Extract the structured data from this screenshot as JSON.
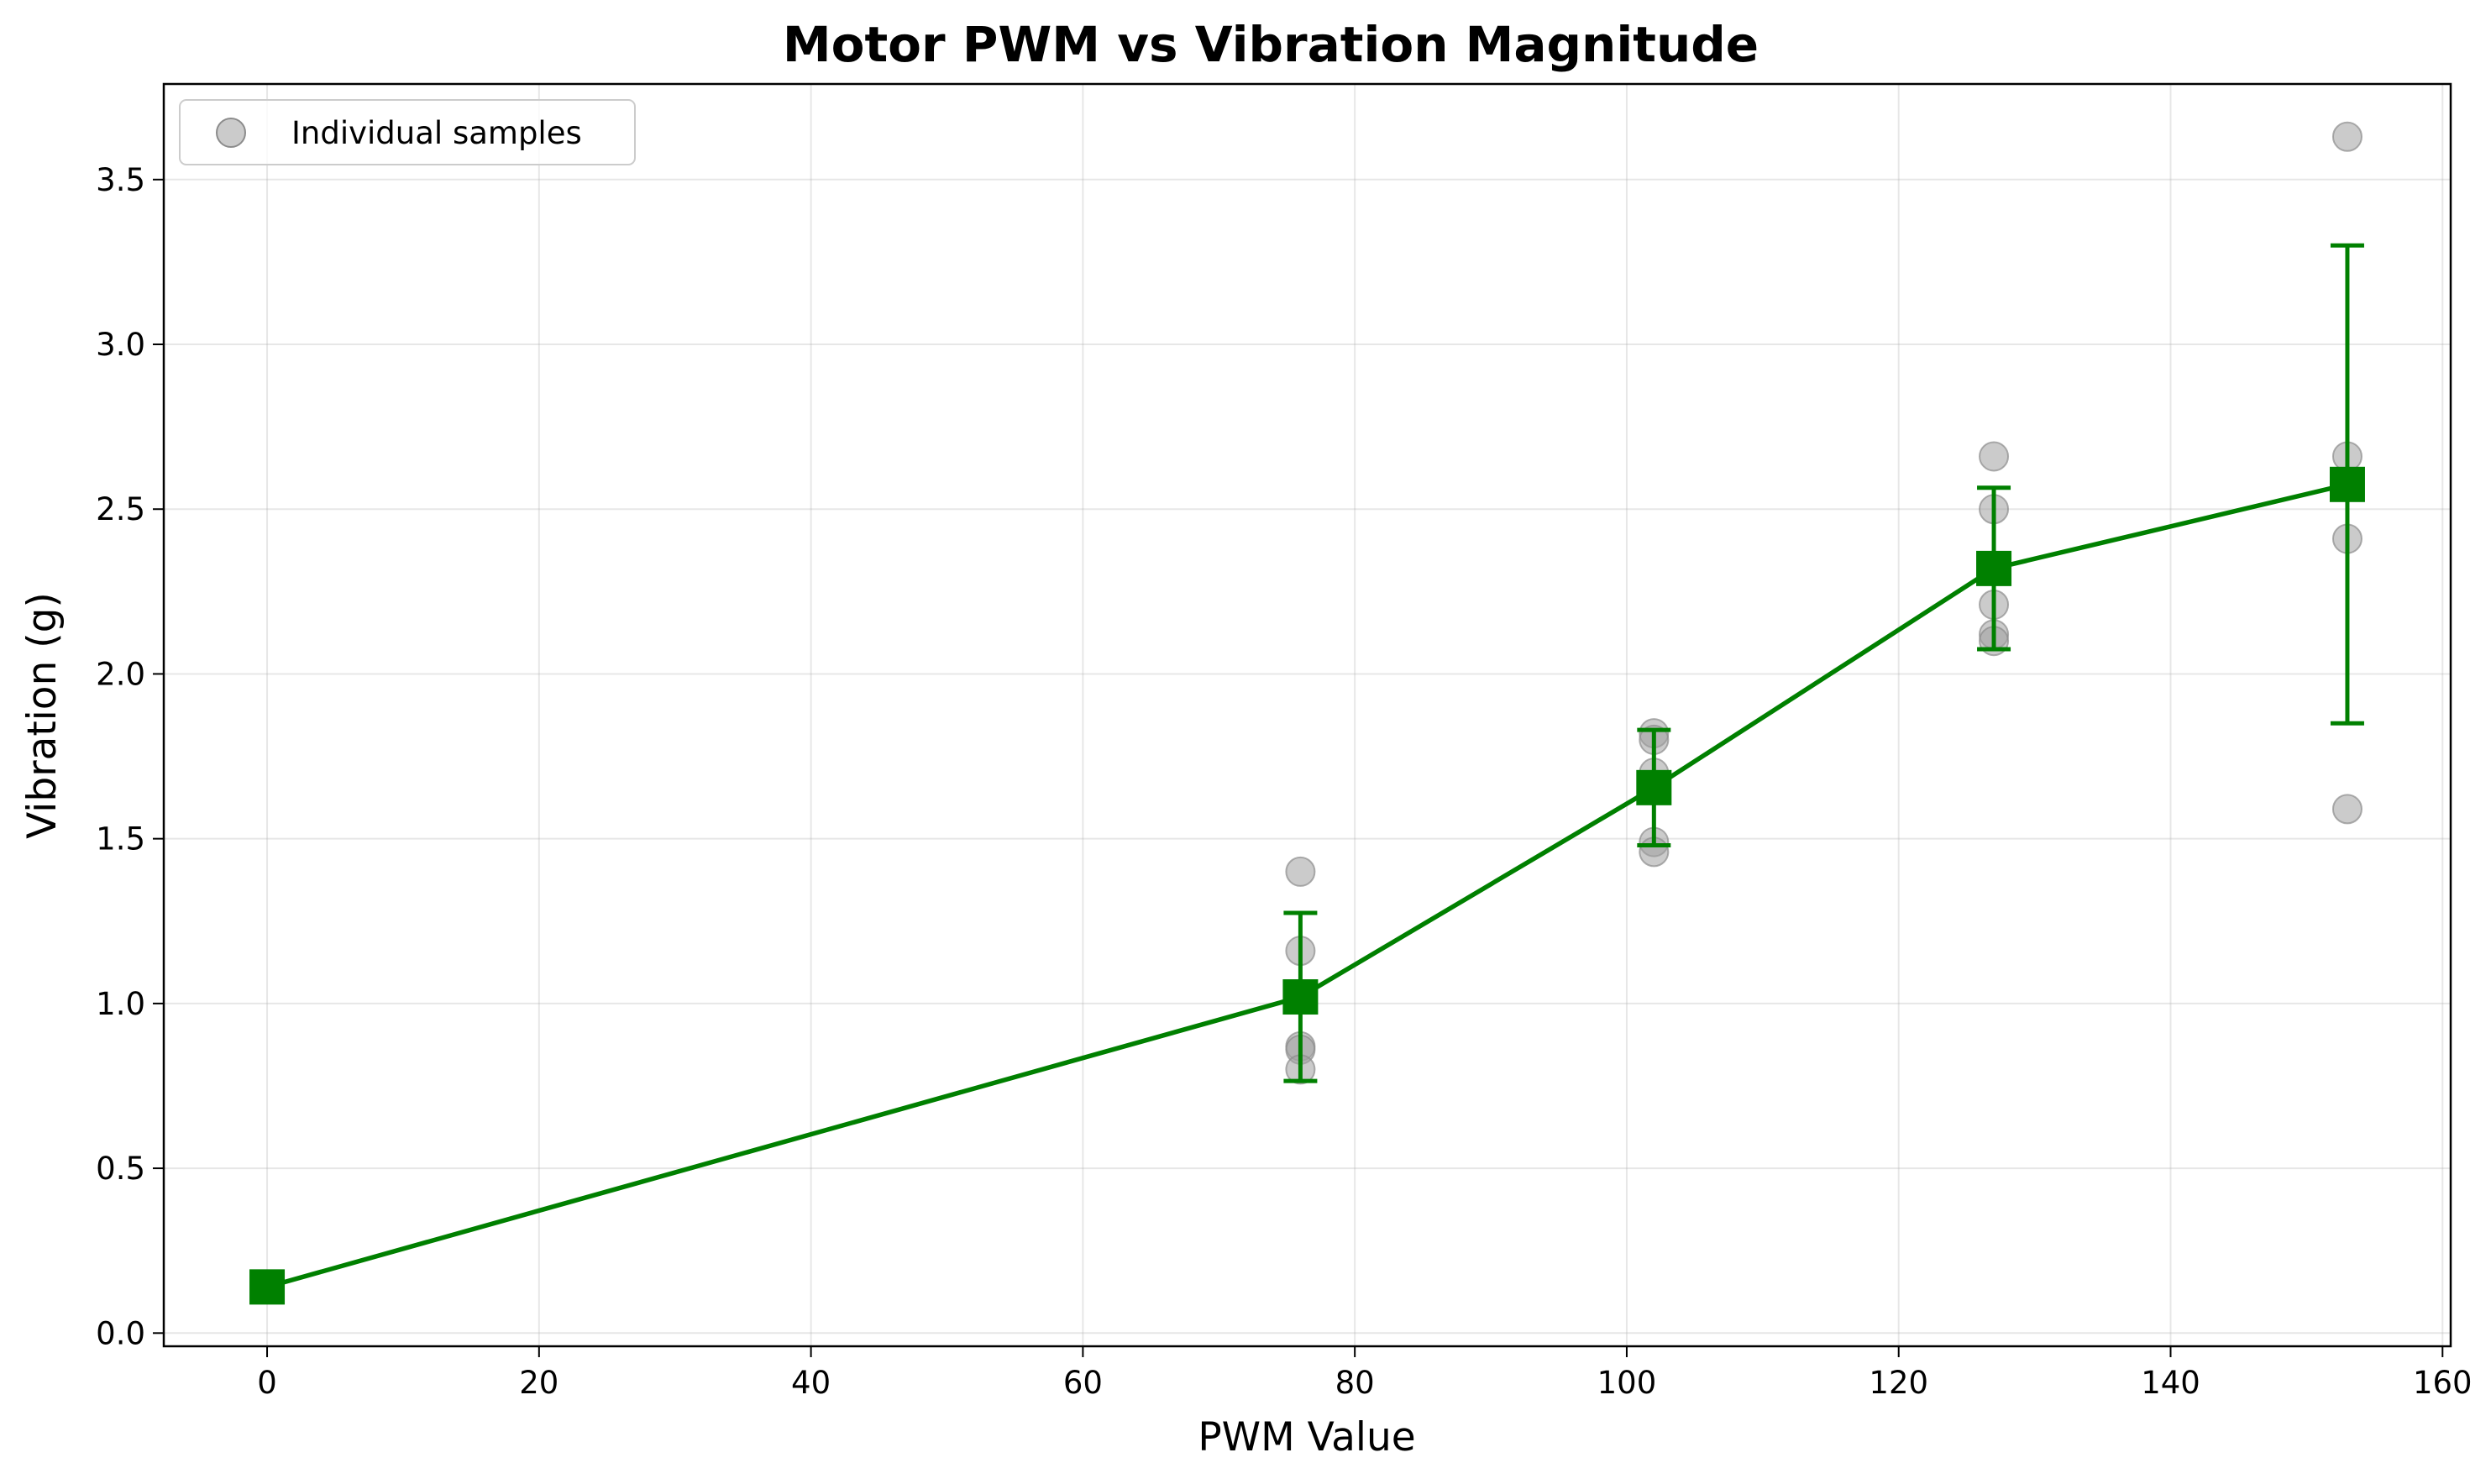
{
  "chart_data": {
    "type": "line",
    "title": "Motor PWM vs Vibration Magnitude",
    "xlabel": "PWM Value",
    "ylabel": "Vibration (g)",
    "xlim": [
      -7.6,
      160.6
    ],
    "ylim": [
      -0.04,
      3.79
    ],
    "x_ticks": [
      0,
      20,
      40,
      60,
      80,
      100,
      120,
      140,
      160
    ],
    "y_ticks": [
      0.0,
      0.5,
      1.0,
      1.5,
      2.0,
      2.5,
      3.0,
      3.5
    ],
    "x_tick_labels": [
      "0",
      "20",
      "40",
      "60",
      "80",
      "100",
      "120",
      "140",
      "160"
    ],
    "y_tick_labels": [
      "0.0",
      "0.5",
      "1.0",
      "1.5",
      "2.0",
      "2.5",
      "3.0",
      "3.5"
    ],
    "grid": true,
    "legend_position": "top-left",
    "colors": {
      "mean": "#008000",
      "samples": "#a0a0a0"
    },
    "mean_series": {
      "marker": "square",
      "points": [
        {
          "x": 0,
          "y": 0.14,
          "err": 0
        },
        {
          "x": 76,
          "y": 1.02,
          "err": 0.255
        },
        {
          "x": 102,
          "y": 1.655,
          "err": 0.175
        },
        {
          "x": 127,
          "y": 2.32,
          "err": 0.245
        },
        {
          "x": 153,
          "y": 2.575,
          "err": 0.725
        }
      ]
    },
    "samples_series": {
      "name": "Individual samples",
      "marker": "circle",
      "points": [
        {
          "x": 76,
          "y": 1.4
        },
        {
          "x": 76,
          "y": 1.16
        },
        {
          "x": 76,
          "y": 0.87
        },
        {
          "x": 76,
          "y": 0.86
        },
        {
          "x": 76,
          "y": 0.8
        },
        {
          "x": 102,
          "y": 1.82
        },
        {
          "x": 102,
          "y": 1.8
        },
        {
          "x": 102,
          "y": 1.7
        },
        {
          "x": 102,
          "y": 1.49
        },
        {
          "x": 102,
          "y": 1.46
        },
        {
          "x": 127,
          "y": 2.66
        },
        {
          "x": 127,
          "y": 2.5
        },
        {
          "x": 127,
          "y": 2.21
        },
        {
          "x": 127,
          "y": 2.12
        },
        {
          "x": 127,
          "y": 2.1
        },
        {
          "x": 153,
          "y": 3.63
        },
        {
          "x": 153,
          "y": 2.66
        },
        {
          "x": 153,
          "y": 2.41
        },
        {
          "x": 153,
          "y": 1.59
        }
      ]
    }
  }
}
